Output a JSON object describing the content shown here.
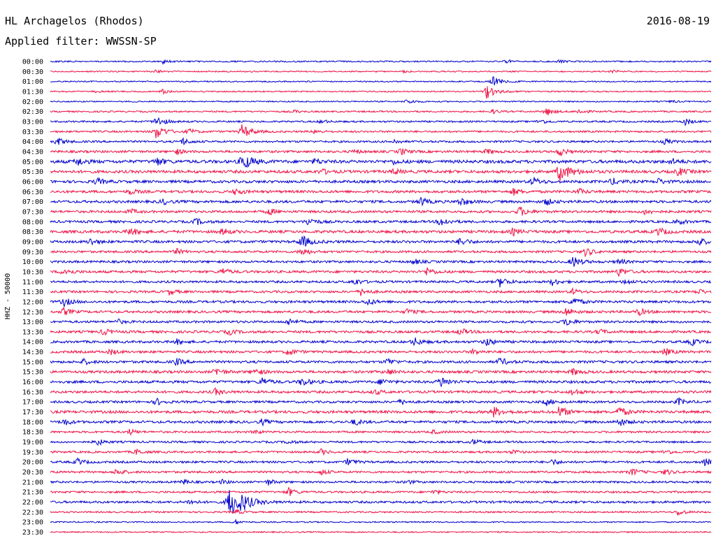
{
  "header": {
    "station": "HL Archagelos (Rhodos)",
    "date": "2016-08-19",
    "filter": "Applied filter: WWSSN-SP"
  },
  "chart_data": {
    "type": "line",
    "title": "HL Archagelos (Rhodos)",
    "subtitle": "Applied filter: WWSSN-SP",
    "date": "2016-08-19",
    "ylabel": "HHZ - 50000",
    "xlabel": "",
    "grid": false,
    "legend": "none",
    "row_interval_minutes": 30,
    "rows": [
      {
        "time": "00:00",
        "color": "#0000cc",
        "amp": 1.0,
        "events": [
          [
            0.17,
            3
          ],
          [
            0.69,
            3
          ],
          [
            0.77,
            3
          ]
        ]
      },
      {
        "time": "00:30",
        "color": "#ee1144",
        "amp": 0.9,
        "events": [
          [
            0.16,
            3
          ],
          [
            0.53,
            2
          ],
          [
            0.85,
            2
          ]
        ]
      },
      {
        "time": "01:00",
        "color": "#0000cc",
        "amp": 0.9,
        "events": [
          [
            0.67,
            8
          ]
        ]
      },
      {
        "time": "01:30",
        "color": "#ee1144",
        "amp": 0.9,
        "events": [
          [
            0.07,
            2
          ],
          [
            0.17,
            3
          ],
          [
            0.66,
            10
          ]
        ]
      },
      {
        "time": "02:00",
        "color": "#0000cc",
        "amp": 0.9,
        "events": [
          [
            0.54,
            4
          ],
          [
            0.94,
            2
          ]
        ]
      },
      {
        "time": "02:30",
        "color": "#ee1144",
        "amp": 1.1,
        "events": [
          [
            0.37,
            2
          ],
          [
            0.67,
            3
          ],
          [
            0.75,
            6
          ],
          [
            0.8,
            4
          ]
        ]
      },
      {
        "time": "03:00",
        "color": "#0000cc",
        "amp": 1.2,
        "events": [
          [
            0.16,
            8
          ],
          [
            0.41,
            3
          ],
          [
            0.74,
            4
          ],
          [
            0.96,
            5
          ]
        ]
      },
      {
        "time": "03:30",
        "color": "#ee1144",
        "amp": 1.3,
        "events": [
          [
            0.16,
            10
          ],
          [
            0.21,
            4
          ],
          [
            0.29,
            10
          ],
          [
            0.4,
            3
          ]
        ]
      },
      {
        "time": "04:00",
        "color": "#0000cc",
        "amp": 1.4,
        "events": [
          [
            0.01,
            6
          ],
          [
            0.2,
            5
          ],
          [
            0.52,
            3
          ],
          [
            0.93,
            4
          ]
        ]
      },
      {
        "time": "04:30",
        "color": "#ee1144",
        "amp": 1.6,
        "events": [
          [
            0.19,
            4
          ],
          [
            0.46,
            3
          ],
          [
            0.53,
            5
          ],
          [
            0.66,
            4
          ],
          [
            0.77,
            6
          ]
        ]
      },
      {
        "time": "05:00",
        "color": "#0000cc",
        "amp": 2.2,
        "events": [
          [
            0.04,
            6
          ],
          [
            0.16,
            6
          ],
          [
            0.29,
            12
          ],
          [
            0.4,
            4
          ],
          [
            0.52,
            3
          ],
          [
            0.94,
            4
          ]
        ]
      },
      {
        "time": "05:30",
        "color": "#ee1144",
        "amp": 2.0,
        "events": [
          [
            0.41,
            4
          ],
          [
            0.52,
            4
          ],
          [
            0.77,
            14
          ],
          [
            0.95,
            6
          ]
        ]
      },
      {
        "time": "06:00",
        "color": "#0000cc",
        "amp": 1.9,
        "events": [
          [
            0.07,
            5
          ],
          [
            0.73,
            6
          ],
          [
            0.85,
            5
          ],
          [
            0.92,
            4
          ]
        ]
      },
      {
        "time": "06:30",
        "color": "#ee1144",
        "amp": 1.8,
        "events": [
          [
            0.12,
            4
          ],
          [
            0.28,
            5
          ],
          [
            0.7,
            5
          ],
          [
            0.8,
            4
          ]
        ]
      },
      {
        "time": "07:00",
        "color": "#0000cc",
        "amp": 1.8,
        "events": [
          [
            0.17,
            4
          ],
          [
            0.56,
            6
          ],
          [
            0.62,
            6
          ],
          [
            0.75,
            5
          ]
        ]
      },
      {
        "time": "07:30",
        "color": "#ee1144",
        "amp": 1.7,
        "events": [
          [
            0.12,
            4
          ],
          [
            0.33,
            5
          ],
          [
            0.71,
            7
          ],
          [
            0.9,
            4
          ]
        ]
      },
      {
        "time": "08:00",
        "color": "#0000cc",
        "amp": 1.7,
        "events": [
          [
            0.22,
            5
          ],
          [
            0.39,
            6
          ],
          [
            0.59,
            7
          ],
          [
            0.95,
            4
          ]
        ]
      },
      {
        "time": "08:30",
        "color": "#ee1144",
        "amp": 1.9,
        "events": [
          [
            0.12,
            6
          ],
          [
            0.26,
            5
          ],
          [
            0.7,
            5
          ],
          [
            0.92,
            6
          ]
        ]
      },
      {
        "time": "09:00",
        "color": "#0000cc",
        "amp": 1.8,
        "events": [
          [
            0.06,
            5
          ],
          [
            0.38,
            9
          ],
          [
            0.62,
            6
          ],
          [
            0.98,
            6
          ]
        ]
      },
      {
        "time": "09:30",
        "color": "#ee1144",
        "amp": 1.6,
        "events": [
          [
            0.19,
            4
          ],
          [
            0.38,
            6
          ],
          [
            0.81,
            6
          ]
        ]
      },
      {
        "time": "10:00",
        "color": "#0000cc",
        "amp": 1.6,
        "events": [
          [
            0.55,
            4
          ],
          [
            0.79,
            8
          ],
          [
            0.86,
            4
          ]
        ]
      },
      {
        "time": "10:30",
        "color": "#ee1144",
        "amp": 1.7,
        "events": [
          [
            0.02,
            6
          ],
          [
            0.26,
            5
          ],
          [
            0.57,
            6
          ],
          [
            0.86,
            6
          ]
        ]
      },
      {
        "time": "11:00",
        "color": "#0000cc",
        "amp": 1.6,
        "events": [
          [
            0.46,
            5
          ],
          [
            0.68,
            7
          ],
          [
            0.76,
            5
          ],
          [
            0.87,
            4
          ]
        ]
      },
      {
        "time": "11:30",
        "color": "#ee1144",
        "amp": 1.6,
        "events": [
          [
            0.18,
            4
          ],
          [
            0.47,
            5
          ],
          [
            0.79,
            4
          ],
          [
            0.98,
            4
          ]
        ]
      },
      {
        "time": "12:00",
        "color": "#0000cc",
        "amp": 1.7,
        "events": [
          [
            0.02,
            6
          ],
          [
            0.48,
            5
          ],
          [
            0.79,
            7
          ]
        ]
      },
      {
        "time": "12:30",
        "color": "#ee1144",
        "amp": 1.7,
        "events": [
          [
            0.02,
            5
          ],
          [
            0.54,
            4
          ],
          [
            0.78,
            6
          ],
          [
            0.89,
            5
          ]
        ]
      },
      {
        "time": "13:00",
        "color": "#0000cc",
        "amp": 1.6,
        "events": [
          [
            0.1,
            4
          ],
          [
            0.36,
            5
          ],
          [
            0.78,
            6
          ]
        ]
      },
      {
        "time": "13:30",
        "color": "#ee1144",
        "amp": 1.7,
        "events": [
          [
            0.08,
            5
          ],
          [
            0.27,
            4
          ],
          [
            0.62,
            5
          ],
          [
            0.83,
            4
          ]
        ]
      },
      {
        "time": "14:00",
        "color": "#0000cc",
        "amp": 1.7,
        "events": [
          [
            0.19,
            4
          ],
          [
            0.55,
            6
          ],
          [
            0.66,
            6
          ],
          [
            0.97,
            5
          ]
        ]
      },
      {
        "time": "14:30",
        "color": "#ee1144",
        "amp": 1.7,
        "events": [
          [
            0.09,
            4
          ],
          [
            0.36,
            5
          ],
          [
            0.64,
            4
          ],
          [
            0.93,
            5
          ]
        ]
      },
      {
        "time": "15:00",
        "color": "#0000cc",
        "amp": 1.7,
        "events": [
          [
            0.05,
            4
          ],
          [
            0.19,
            5
          ],
          [
            0.51,
            5
          ],
          [
            0.68,
            6
          ]
        ]
      },
      {
        "time": "15:30",
        "color": "#ee1144",
        "amp": 1.8,
        "events": [
          [
            0.25,
            6
          ],
          [
            0.31,
            5
          ],
          [
            0.51,
            4
          ],
          [
            0.79,
            5
          ]
        ]
      },
      {
        "time": "16:00",
        "color": "#0000cc",
        "amp": 1.8,
        "events": [
          [
            0.32,
            6
          ],
          [
            0.38,
            6
          ],
          [
            0.5,
            5
          ],
          [
            0.59,
            8
          ]
        ]
      },
      {
        "time": "16:30",
        "color": "#ee1144",
        "amp": 1.7,
        "events": [
          [
            0.25,
            5
          ],
          [
            0.49,
            4
          ],
          [
            0.79,
            5
          ]
        ]
      },
      {
        "time": "17:00",
        "color": "#0000cc",
        "amp": 1.6,
        "events": [
          [
            0.16,
            5
          ],
          [
            0.53,
            4
          ],
          [
            0.75,
            5
          ],
          [
            0.95,
            5
          ]
        ]
      },
      {
        "time": "17:30",
        "color": "#ee1144",
        "amp": 1.9,
        "events": [
          [
            0.67,
            8
          ],
          [
            0.77,
            8
          ],
          [
            0.86,
            7
          ]
        ]
      },
      {
        "time": "18:00",
        "color": "#0000cc",
        "amp": 1.7,
        "events": [
          [
            0.02,
            5
          ],
          [
            0.32,
            4
          ],
          [
            0.46,
            5
          ],
          [
            0.86,
            6
          ]
        ]
      },
      {
        "time": "18:30",
        "color": "#ee1144",
        "amp": 1.4,
        "events": [
          [
            0.12,
            4
          ],
          [
            0.31,
            3
          ],
          [
            0.58,
            3
          ]
        ]
      },
      {
        "time": "19:00",
        "color": "#0000cc",
        "amp": 1.4,
        "events": [
          [
            0.07,
            5
          ],
          [
            0.36,
            3
          ],
          [
            0.64,
            4
          ]
        ]
      },
      {
        "time": "19:30",
        "color": "#ee1144",
        "amp": 1.4,
        "events": [
          [
            0.13,
            4
          ],
          [
            0.41,
            4
          ],
          [
            0.7,
            3
          ],
          [
            0.93,
            4
          ]
        ]
      },
      {
        "time": "20:00",
        "color": "#0000cc",
        "amp": 1.5,
        "events": [
          [
            0.04,
            5
          ],
          [
            0.45,
            5
          ],
          [
            0.76,
            4
          ],
          [
            0.99,
            5
          ]
        ]
      },
      {
        "time": "20:30",
        "color": "#ee1144",
        "amp": 1.5,
        "events": [
          [
            0.1,
            5
          ],
          [
            0.41,
            4
          ],
          [
            0.88,
            5
          ],
          [
            0.93,
            4
          ]
        ]
      },
      {
        "time": "21:00",
        "color": "#0000cc",
        "amp": 1.4,
        "events": [
          [
            0.2,
            4
          ],
          [
            0.26,
            3
          ],
          [
            0.33,
            4
          ],
          [
            0.54,
            3
          ]
        ]
      },
      {
        "time": "21:30",
        "color": "#ee1144",
        "amp": 1.4,
        "events": [
          [
            0.36,
            6
          ],
          [
            0.58,
            3
          ]
        ]
      },
      {
        "time": "22:00",
        "color": "#0000cc",
        "amp": 1.6,
        "events": [
          [
            0.21,
            4
          ],
          [
            0.27,
            22
          ],
          [
            0.29,
            6
          ]
        ]
      },
      {
        "time": "22:30",
        "color": "#ee1144",
        "amp": 1.1,
        "events": [
          [
            0.28,
            4
          ],
          [
            0.95,
            5
          ]
        ]
      },
      {
        "time": "23:00",
        "color": "#0000cc",
        "amp": 0.9,
        "events": [
          [
            0.28,
            3
          ]
        ]
      },
      {
        "time": "23:30",
        "color": "#ee1144",
        "amp": 0.9,
        "events": []
      }
    ]
  }
}
